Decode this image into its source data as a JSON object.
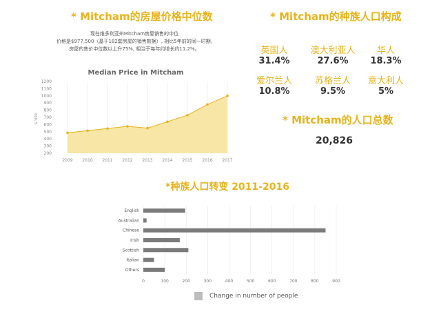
{
  "left_title": "* Mitcham的房屋价格中位数",
  "description": [
    "现在维多利亚州Mitcham房屋销售的中位",
    "价格是$977,500（基于182套房屋的销售数据）, 相比5年前的同一时期,",
    "房屋的售价中位数以上升75%, 相当于每年约增长约11.2%。"
  ],
  "right_title": "* Mitcham的种族人口构成",
  "ethnicity": [
    {
      "name": "英国人",
      "value": "31.4%"
    },
    {
      "name": "澳大利亚人",
      "value": "27.6%"
    },
    {
      "name": "华人",
      "value": "18.3%"
    },
    {
      "name": "爱尔兰人",
      "value": "10.8%"
    },
    {
      "name": "苏格兰人",
      "value": "9.5%"
    },
    {
      "name": "意大利人",
      "value": "5%"
    }
  ],
  "population_title": "* Mitcham的人口总数",
  "population_value": "20,826",
  "bottom_title": "*种族人口转变 2011-2016",
  "colors": {
    "accent": "#E8B319",
    "area_fill": "#F7E6A6",
    "bar": "#7a7a7a",
    "grid": "#e6e6e6"
  },
  "chart_data": [
    {
      "type": "area",
      "title": "Median Price in Mitcham",
      "ylabel": "$ '000",
      "xlabel": "",
      "x": [
        "2009",
        "2010",
        "2011",
        "2012",
        "2013",
        "2014",
        "2015",
        "2016",
        "2017"
      ],
      "values": [
        485,
        515,
        545,
        575,
        550,
        640,
        730,
        880,
        1000
      ],
      "ylim": [
        200,
        1200
      ],
      "yticks": [
        200,
        300,
        400,
        500,
        600,
        700,
        800,
        900,
        1000,
        1100,
        1200
      ],
      "grid": "vertical"
    },
    {
      "type": "bar",
      "orientation": "horizontal",
      "categories": [
        "English",
        "Australian",
        "Chinese",
        "Irish",
        "Scottish",
        "Italian",
        "Others"
      ],
      "values": [
        195,
        15,
        850,
        170,
        210,
        50,
        100
      ],
      "xlim": [
        0,
        900
      ],
      "xticks": [
        0,
        100,
        200,
        300,
        400,
        500,
        600,
        700,
        800,
        900
      ],
      "legend": "Change in number of people",
      "legend_position": "bottom"
    }
  ]
}
